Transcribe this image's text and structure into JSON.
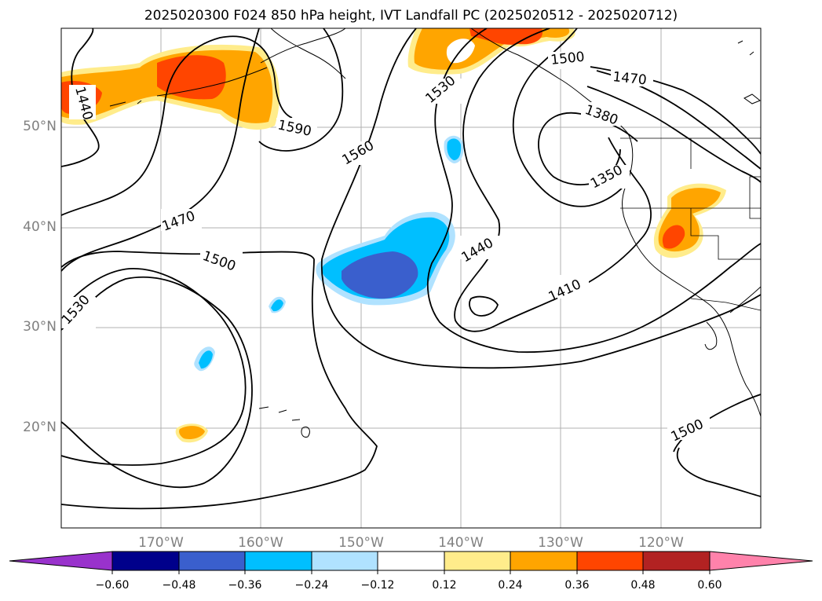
{
  "title": "2025020300 F024 850 hPa height, IVT Landfall PC (2025020512 - 2025020712)",
  "lat_labels": [
    "50°N",
    "40°N",
    "30°N",
    "20°N"
  ],
  "lon_labels": [
    "170°W",
    "160°W",
    "150°W",
    "140°W",
    "130°W",
    "120°W"
  ],
  "contour_labels": [
    "1440",
    "1590",
    "1560",
    "1530",
    "1500",
    "1470",
    "1380",
    "1350",
    "1470",
    "1500",
    "1530",
    "1440",
    "1410",
    "1500"
  ],
  "colorbar": {
    "labels": [
      "−0.60",
      "−0.48",
      "−0.36",
      "−0.24",
      "−0.12",
      "0.12",
      "0.24",
      "0.36",
      "0.48",
      "0.60"
    ],
    "colors": [
      "#9932cc",
      "#00008b",
      "#3a5fcd",
      "#00bfff",
      "#b0e2ff",
      "#ffffff",
      "#ffec8b",
      "#ffa500",
      "#ff4500",
      "#b22222",
      "#ff82ab"
    ]
  }
}
